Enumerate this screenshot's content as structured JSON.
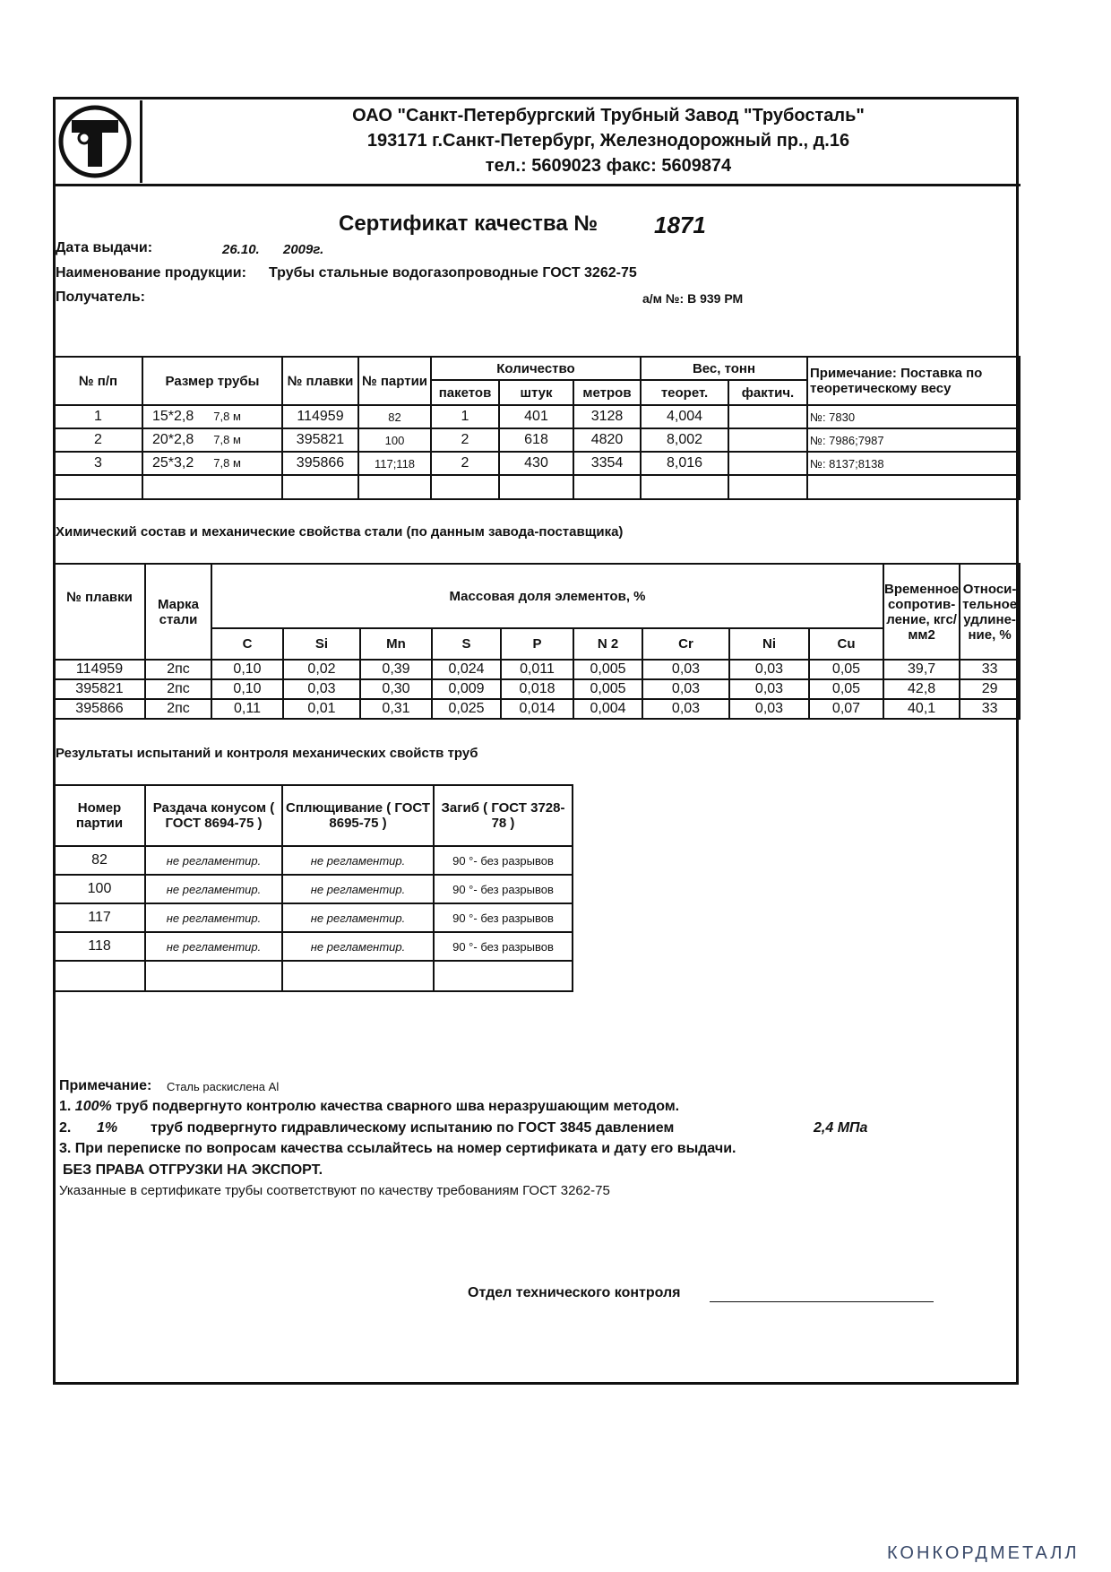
{
  "header": {
    "company": "ОАО \"Санкт-Петербургский Трубный Завод \"Трубосталь\"",
    "address": "193171   г.Санкт-Петербург, Железнодорожный пр., д.16",
    "contacts": "тел.: 5609023     факс: 5609874",
    "logo_text": "ТТ"
  },
  "certificate": {
    "title": "Сертификат качества №",
    "number": "1871",
    "date_label": "Дата выдачи:",
    "date_day": "26.10.",
    "date_year": "2009г.",
    "product_label": "Наименование продукции:",
    "product": "Трубы стальные водогазопроводные ГОСТ 3262-75",
    "recipient_label": "Получатель:",
    "vehicle": "а/м №: В 939 РМ"
  },
  "table1": {
    "headers": {
      "num": "№ п/п",
      "size": "Размер трубы",
      "melt": "№ плавки",
      "batch": "№ партии",
      "qty": "Количество",
      "packs": "пакетов",
      "pcs": "штук",
      "meters": "метров",
      "weight": "Вес, тонн",
      "theor": "теорет.",
      "actual": "фактич.",
      "note": "Примечание: Поставка по теоретическому весу"
    },
    "rows": [
      {
        "num": "1",
        "size": "15*2,8",
        "len": "7,8 м",
        "melt": "114959",
        "batch": "82",
        "packs": "1",
        "pcs": "401",
        "meters": "3128",
        "theor": "4,004",
        "actual": "",
        "note": "№: 7830"
      },
      {
        "num": "2",
        "size": "20*2,8",
        "len": "7,8 м",
        "melt": "395821",
        "batch": "100",
        "packs": "2",
        "pcs": "618",
        "meters": "4820",
        "theor": "8,002",
        "actual": "",
        "note": "№: 7986;7987"
      },
      {
        "num": "3",
        "size": "25*3,2",
        "len": "7,8 м",
        "melt": "395866",
        "batch": "117;118",
        "packs": "2",
        "pcs": "430",
        "meters": "3354",
        "theor": "8,016",
        "actual": "",
        "note": "№: 8137;8138"
      }
    ]
  },
  "chem": {
    "title": "Химический состав и механические свойства стали (по данным завода-поставщика)",
    "headers": {
      "melt": "№ плавки",
      "grade": "Марка стали",
      "mass": "Массовая доля элементов, %",
      "strength": "Временное сопротив-ление, кгс/мм2",
      "elong": "Относи-тельное удлине-ние, %"
    },
    "elements": [
      "C",
      "Si",
      "Mn",
      "S",
      "P",
      "N 2",
      "Cr",
      "Ni",
      "Cu"
    ],
    "rows": [
      {
        "melt": "114959",
        "grade": "2пс",
        "values": [
          "0,10",
          "0,02",
          "0,39",
          "0,024",
          "0,011",
          "0,005",
          "0,03",
          "0,03",
          "0,05"
        ],
        "strength": "39,7",
        "elong": "33"
      },
      {
        "melt": "395821",
        "grade": "2пс",
        "values": [
          "0,10",
          "0,03",
          "0,30",
          "0,009",
          "0,018",
          "0,005",
          "0,03",
          "0,03",
          "0,05"
        ],
        "strength": "42,8",
        "elong": "29"
      },
      {
        "melt": "395866",
        "grade": "2пс",
        "values": [
          "0,11",
          "0,01",
          "0,31",
          "0,025",
          "0,014",
          "0,004",
          "0,03",
          "0,03",
          "0,07"
        ],
        "strength": "40,1",
        "elong": "33"
      }
    ]
  },
  "tests": {
    "title": "Результаты испытаний  и контроля механических свойств труб",
    "headers": {
      "batch": "Номер партии",
      "cone": "Раздача конусом ( ГОСТ 8694-75 )",
      "flat": "Сплющивание ( ГОСТ 8695-75 )",
      "bend": "Загиб ( ГОСТ 3728-78 )"
    },
    "rows": [
      {
        "batch": "82",
        "cone": "не регламентир.",
        "flat": "не регламентир.",
        "bend": "90 °- без разрывов"
      },
      {
        "batch": "100",
        "cone": "не регламентир.",
        "flat": "не регламентир.",
        "bend": "90 °- без разрывов"
      },
      {
        "batch": "117",
        "cone": "не регламентир.",
        "flat": "не регламентир.",
        "bend": "90 °- без разрывов"
      },
      {
        "batch": "118",
        "cone": "не регламентир.",
        "flat": "не регламентир.",
        "bend": "90 °- без разрывов"
      }
    ]
  },
  "notes": {
    "label": "Примечание:",
    "deox": "Сталь  раскислена Al",
    "n1_pre": "1.",
    "n1_pct": "100%",
    "n1_text": "труб подвергнуто контролю качества сварного шва неразрушающим методом.",
    "n2_pre": "2.",
    "n2_pct": "1%",
    "n2_text": "труб подвергнуто гидравлическому испытанию по ГОСТ 3845 давлением",
    "n2_val": "2,4 МПа",
    "n3": "3. При переписке по вопросам качества ссылайтесь на номер сертификата и дату его выдачи.",
    "export": "БЕЗ ПРАВА ОТГРУЗКИ НА ЭКСПОРТ.",
    "conform": "Указанные в сертификате трубы соответствуют по  качеству требованиям ГОСТ 3262-75",
    "signature": "Отдел технического контроля"
  },
  "watermark": "КОНКОРДМЕТАЛЛ"
}
